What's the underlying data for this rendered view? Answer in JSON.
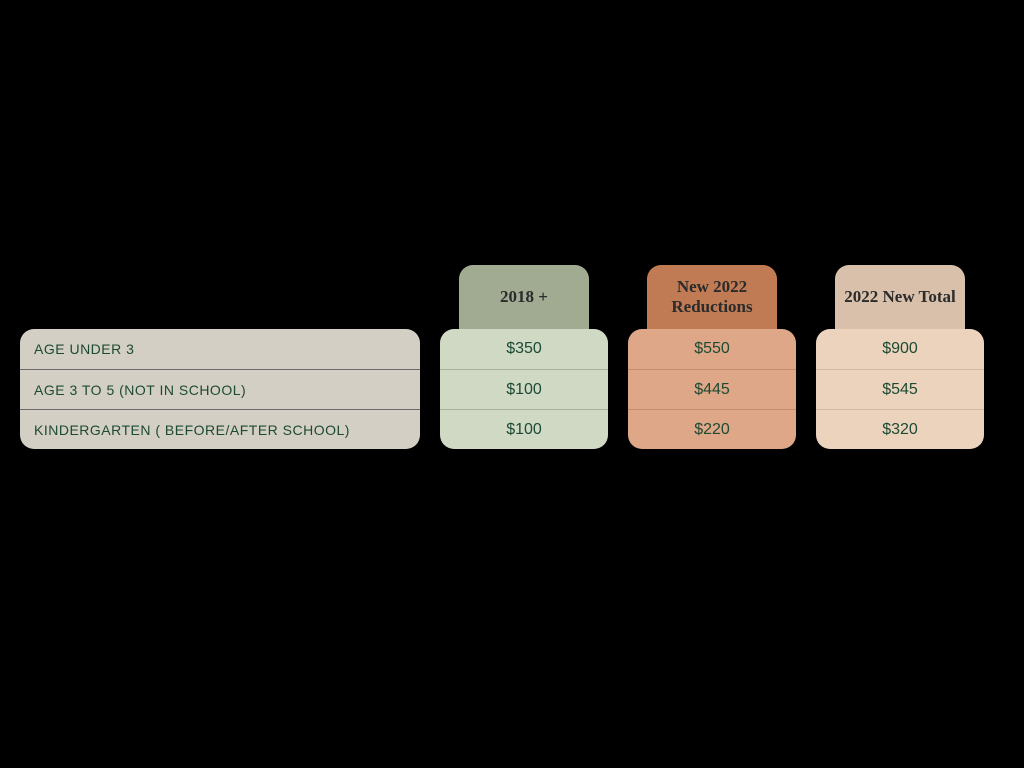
{
  "colors": {
    "background": "#000000",
    "label_bg": "#d4cfc4",
    "label_text": "#1c4a33",
    "label_divider": "#6b6b6b",
    "col1_header_bg": "#a1ab92",
    "col1_header_text": "#2b2b2b",
    "col1_body_bg": "#cfd9c4",
    "col1_text": "#1c4a33",
    "col1_divider": "#a8b39c",
    "col2_header_bg": "#c17b54",
    "col2_header_text": "#2b2b2b",
    "col2_body_bg": "#dea787",
    "col2_text": "#1c4a33",
    "col2_divider": "#c38d6e",
    "col3_header_bg": "#d9c0aa",
    "col3_header_text": "#2b2b2b",
    "col3_body_bg": "#ecd3bd",
    "col3_text": "#1c4a33",
    "col3_divider": "#d4b8a0"
  },
  "rows": [
    {
      "label": "AGE UNDER 3",
      "c1": "$350",
      "c2": "$550",
      "c3": "$900"
    },
    {
      "label": "AGE 3 TO 5 (NOT IN SCHOOL)",
      "c1": "$100",
      "c2": "$445",
      "c3": "$545"
    },
    {
      "label": "KINDERGARTEN ( BEFORE/AFTER SCHOOL)",
      "c1": "$100",
      "c2": "$220",
      "c3": "$320"
    }
  ],
  "headers": {
    "c1": "2018 +",
    "c2": "New 2022 Reductions",
    "c3": "2022 New Total"
  }
}
